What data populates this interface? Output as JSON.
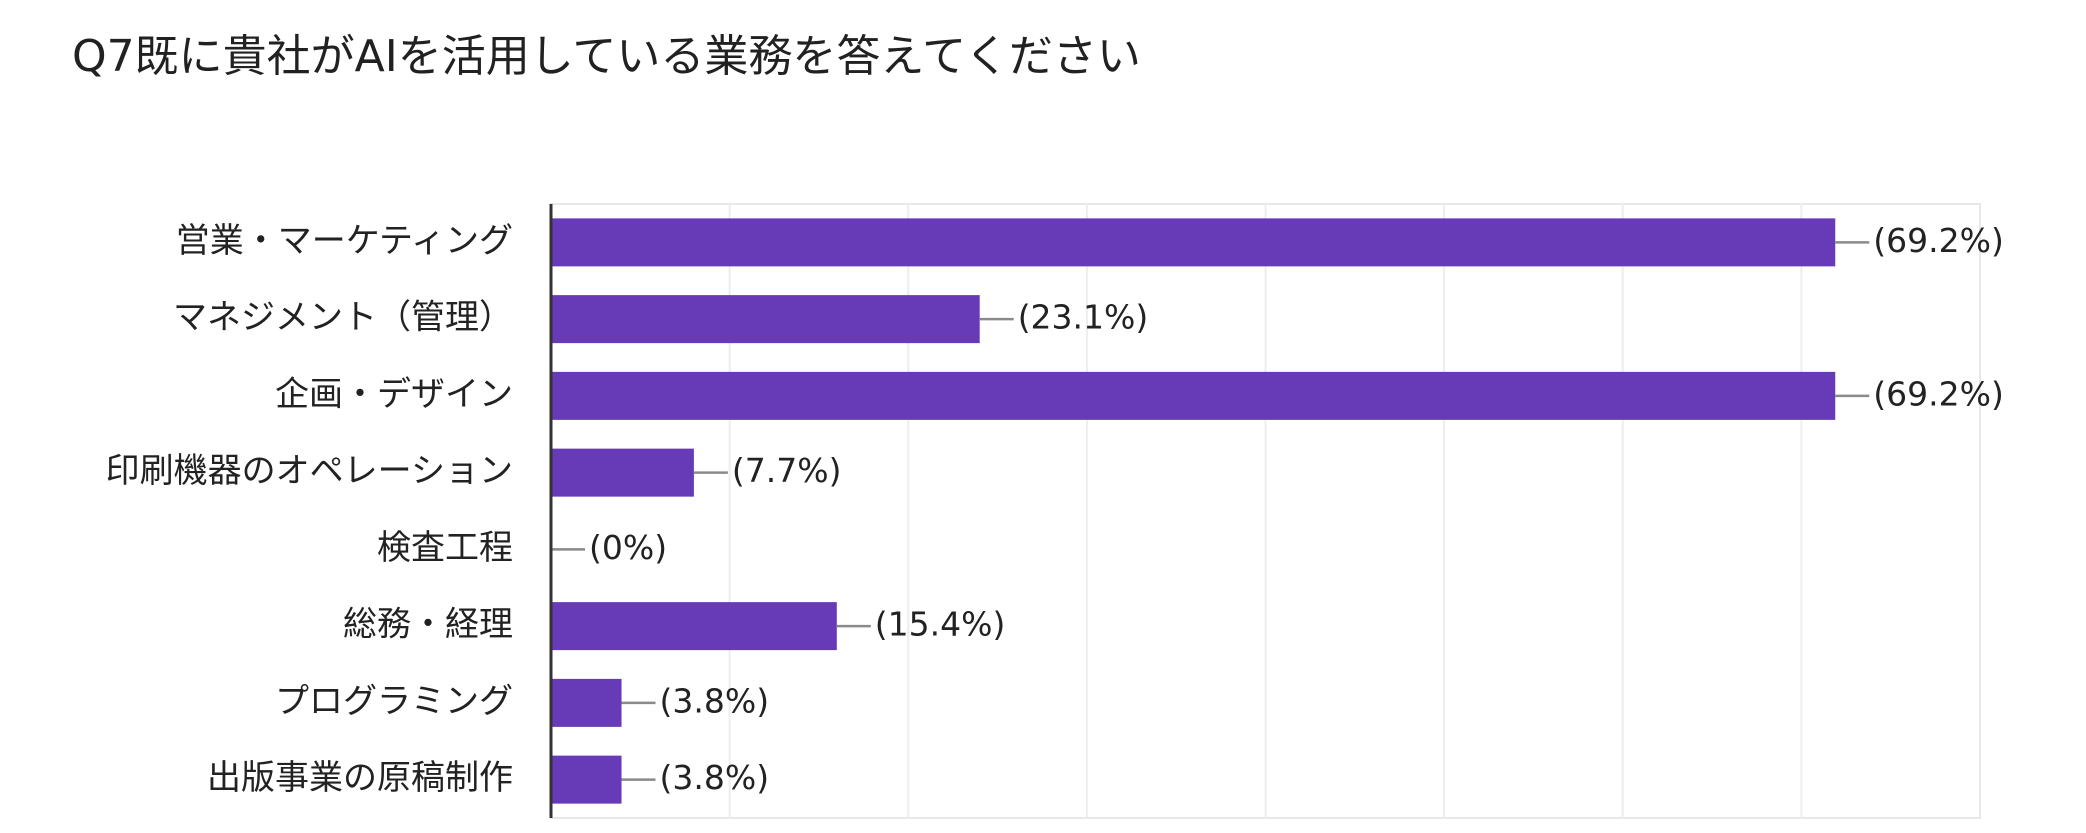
{
  "chart_data": {
    "type": "bar",
    "orientation": "horizontal",
    "title": "Q7既に貴社がAIを活用している業務を答えてください",
    "xlabel": "",
    "ylabel": "",
    "xlim": [
      0,
      77
    ],
    "grid": true,
    "bar_color": "#673ab7",
    "categories": [
      "営業・マーケティング",
      "マネジメント（管理）",
      "企画・デザイン",
      "印刷機器のオペレーション",
      "検査工程",
      "総務・経理",
      "プログラミング",
      "出版事業の原稿制作"
    ],
    "values": [
      69.2,
      23.1,
      69.2,
      7.7,
      0,
      15.4,
      3.8,
      3.8
    ],
    "value_labels": [
      "(69.2%)",
      "(23.1%)",
      "(69.2%)",
      "(7.7%)",
      "(0%)",
      "(15.4%)",
      "(3.8%)",
      "(3.8%)"
    ]
  }
}
